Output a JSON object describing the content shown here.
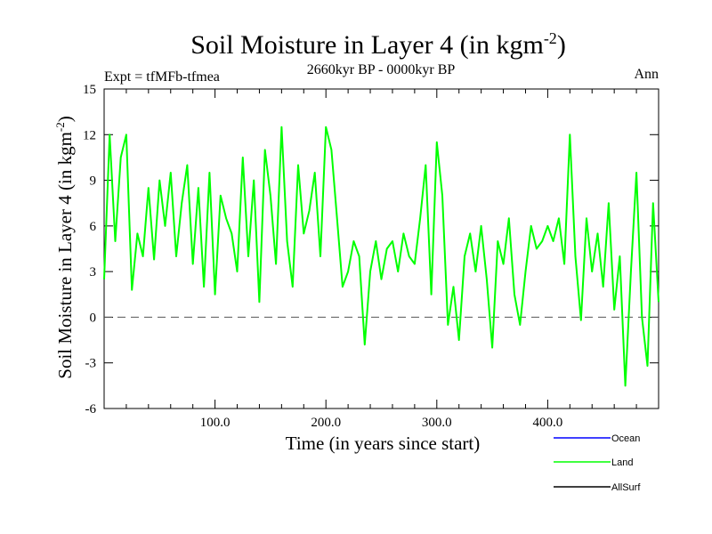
{
  "chart_data": {
    "type": "line",
    "title_main": "Soil Moisture in Layer 4 (in kgm",
    "title_sup": "-2",
    "title_close": ")",
    "subtitle": "2660kyr BP - 0000kyr BP",
    "expt_label": "Expt = tfMFb-tfmea",
    "season_label": "Ann",
    "xlabel": "Time (in years since start)",
    "ylabel_main": "Soil Moisture in Layer 4 (in kgm",
    "ylabel_sup": "-2",
    "ylabel_close": ")",
    "xlim": [
      0,
      500
    ],
    "ylim": [
      -6,
      15
    ],
    "x_ticks": [
      100,
      200,
      300,
      400
    ],
    "x_tick_labels": [
      "100.0",
      "200.0",
      "300.0",
      "400.0"
    ],
    "y_ticks": [
      -6,
      -3,
      0,
      3,
      6,
      9,
      12,
      15
    ],
    "y_tick_labels": [
      "-6",
      "-3",
      "0",
      "3",
      "6",
      "9",
      "12",
      "15"
    ],
    "reference_line": 0,
    "legend": [
      {
        "name": "Ocean",
        "color": "#0000ff"
      },
      {
        "name": "Land",
        "color": "#00ff00"
      },
      {
        "name": "AllSurf",
        "color": "#000000"
      }
    ],
    "series": [
      {
        "name": "Land",
        "color": "#00ff00",
        "x": [
          0,
          5,
          10,
          15,
          20,
          25,
          30,
          35,
          40,
          45,
          50,
          55,
          60,
          65,
          70,
          75,
          80,
          85,
          90,
          95,
          100,
          105,
          110,
          115,
          120,
          125,
          130,
          135,
          140,
          145,
          150,
          155,
          160,
          165,
          170,
          175,
          180,
          185,
          190,
          195,
          200,
          205,
          210,
          215,
          220,
          225,
          230,
          235,
          240,
          245,
          250,
          255,
          260,
          265,
          270,
          275,
          280,
          285,
          290,
          295,
          300,
          305,
          310,
          315,
          320,
          325,
          330,
          335,
          340,
          345,
          350,
          355,
          360,
          365,
          370,
          375,
          380,
          385,
          390,
          395,
          400,
          405,
          410,
          415,
          420,
          425,
          430,
          435,
          440,
          445,
          450,
          455,
          460,
          465,
          470,
          475,
          480,
          485,
          490,
          495,
          500
        ],
        "values": [
          2.5,
          12.0,
          5.0,
          10.5,
          12.0,
          1.8,
          5.5,
          4.0,
          8.5,
          3.8,
          9.0,
          6.0,
          9.5,
          4.0,
          7.5,
          10.0,
          3.5,
          8.5,
          2.0,
          9.5,
          1.5,
          8.0,
          6.5,
          5.5,
          3.0,
          10.5,
          4.0,
          9.0,
          1.0,
          11.0,
          8.0,
          3.5,
          12.5,
          5.0,
          2.0,
          10.0,
          5.5,
          7.0,
          9.5,
          4.0,
          12.5,
          11.0,
          6.5,
          2.0,
          3.0,
          5.0,
          4.0,
          -1.8,
          3.0,
          5.0,
          2.5,
          4.5,
          5.0,
          3.0,
          5.5,
          4.0,
          3.5,
          6.5,
          10.0,
          1.5,
          11.5,
          8.0,
          -0.5,
          2.0,
          -1.5,
          4.0,
          5.5,
          3.0,
          6.0,
          2.5,
          -2.0,
          5.0,
          3.5,
          6.5,
          1.5,
          -0.5,
          3.0,
          6.0,
          4.5,
          5.0,
          6.0,
          5.0,
          6.5,
          3.5,
          12.0,
          4.0,
          -0.2,
          6.5,
          3.0,
          5.5,
          2.0,
          7.5,
          0.5,
          4.0,
          -4.5,
          3.0,
          9.5,
          0.0,
          -3.2,
          7.5,
          1.0
        ]
      }
    ]
  }
}
